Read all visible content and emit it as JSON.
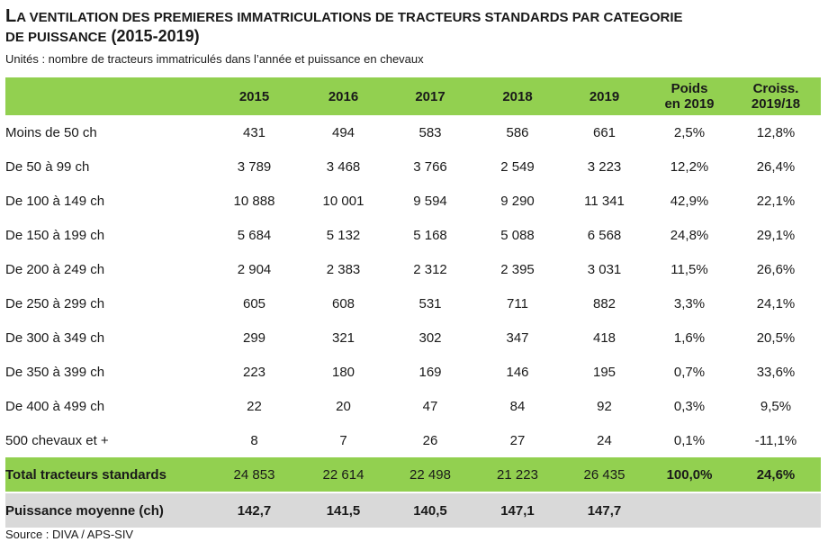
{
  "title": {
    "line1_cap": "L",
    "line1_rest": "A VENTILATION DES PREMIERES IMMATRICULATIONS DE TRACTEURS STANDARDS  PAR CATEGORIE",
    "line2_words": "DE PUISSANCE",
    "line2_years": " (2015-2019)"
  },
  "units": "Unités : nombre de tracteurs immatriculés dans l’année et puissance en chevaux",
  "headers": {
    "label": "",
    "c2015": "2015",
    "c2016": "2016",
    "c2017": "2017",
    "c2018": "2018",
    "c2019": "2019",
    "poids_l1": "Poids",
    "poids_l2": "en 2019",
    "croiss_l1": "Croiss.",
    "croiss_l2": "2019/18"
  },
  "rows": [
    {
      "label": "Moins de 50 ch",
      "y2015": "431",
      "y2016": "494",
      "y2017": "583",
      "y2018": "586",
      "y2019": "661",
      "poids": "2,5%",
      "croiss": "12,8%"
    },
    {
      "label": "De 50 à 99 ch",
      "y2015": "3 789",
      "y2016": "3 468",
      "y2017": "3 766",
      "y2018": "2 549",
      "y2019": "3 223",
      "poids": "12,2%",
      "croiss": "26,4%"
    },
    {
      "label": "De 100 à 149 ch",
      "y2015": "10 888",
      "y2016": "10 001",
      "y2017": "9 594",
      "y2018": "9 290",
      "y2019": "11 341",
      "poids": "42,9%",
      "croiss": "22,1%"
    },
    {
      "label": "De 150 à 199  ch",
      "y2015": "5 684",
      "y2016": "5 132",
      "y2017": "5 168",
      "y2018": "5 088",
      "y2019": "6 568",
      "poids": "24,8%",
      "croiss": "29,1%"
    },
    {
      "label": "De 200 à 249 ch",
      "y2015": "2 904",
      "y2016": "2 383",
      "y2017": "2 312",
      "y2018": "2 395",
      "y2019": "3 031",
      "poids": "11,5%",
      "croiss": "26,6%"
    },
    {
      "label": "De 250 à 299 ch",
      "y2015": "605",
      "y2016": "608",
      "y2017": "531",
      "y2018": "711",
      "y2019": "882",
      "poids": "3,3%",
      "croiss": "24,1%"
    },
    {
      "label": "De 300 à 349 ch",
      "y2015": "299",
      "y2016": "321",
      "y2017": "302",
      "y2018": "347",
      "y2019": "418",
      "poids": "1,6%",
      "croiss": "20,5%"
    },
    {
      "label": "De 350 à 399 ch",
      "y2015": "223",
      "y2016": "180",
      "y2017": "169",
      "y2018": "146",
      "y2019": "195",
      "poids": "0,7%",
      "croiss": "33,6%"
    },
    {
      "label": "De 400 à 499 ch",
      "y2015": "22",
      "y2016": "20",
      "y2017": "47",
      "y2018": "84",
      "y2019": "92",
      "poids": "0,3%",
      "croiss": "9,5%"
    },
    {
      "label": "500 chevaux et +",
      "y2015": "8",
      "y2016": "7",
      "y2017": "26",
      "y2018": "27",
      "y2019": "24",
      "poids": "0,1%",
      "croiss": "-11,1%"
    }
  ],
  "total": {
    "label": "Total tracteurs standards",
    "y2015": "24 853",
    "y2016": "22 614",
    "y2017": "22 498",
    "y2018": "21 223",
    "y2019": "26 435",
    "poids": "100,0%",
    "croiss": "24,6%"
  },
  "average": {
    "label": "Puissance moyenne (ch)",
    "y2015": "142,7",
    "y2016": "141,5",
    "y2017": "140,5",
    "y2018": "147,1",
    "y2019": "147,7",
    "poids": "",
    "croiss": ""
  },
  "source": "Source : DIVA / APS-SIV",
  "colors": {
    "header_green": "#92d050",
    "average_gray": "#d9d9d9"
  }
}
